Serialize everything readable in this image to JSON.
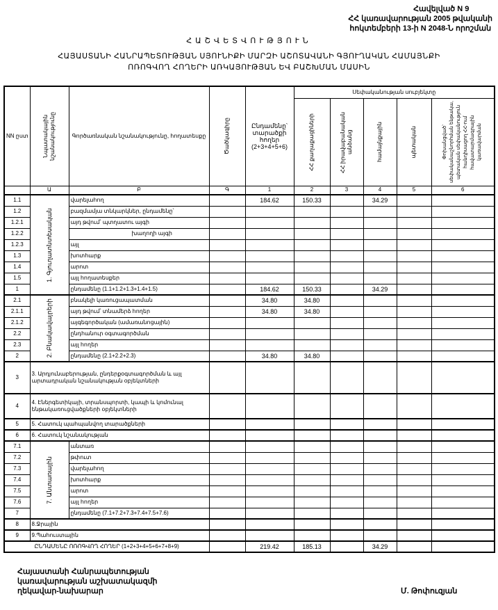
{
  "header": {
    "lines": [
      "Հավելված N 9",
      "ՀՀ կառավարության 2005 թվականի",
      "հոկտեմբերի 13-ի N 2048-Ն որոշման"
    ]
  },
  "title": {
    "main": "ՀԱՇՎԵՏՎՈՒԹՅՈՒՆ",
    "line1": "ՀԱՅԱՍՏԱՆԻ ՀԱՆՐԱՊԵՏՈՒԹՅԱՆ ՍՅՈՒՆԻՔԻ ՄԱՐԶԻ ԱՇՈՏԱՎԱՆԻ ԳՅՈՒՂԱԿԱՆ ՀԱՄԱՅՆՔԻ",
    "line2": "ՈՌՈԳՎՈՂ ՀՈՂԵՐԻ ԱՌԿԱՅՈՒԹՅԱՆ ԵՎ ԲԱՇԽՄԱՆ ՄԱՍԻՆ"
  },
  "table": {
    "headers": {
      "nn": "NN ըստ",
      "purpose": "Նպատակային նշանակությունը",
      "function": "Գործառնական նշանակությունը, հողատեսքը",
      "code": "Ծածկագիրը",
      "total": "Ընդամենը՝ տարածքի հողեր (2+3+4+5+6)",
      "ownership": "Սեփականության սուբյեկտը",
      "c2": "ՀՀ քաղաքացիների",
      "c3": "ՀՀ իրավաբանական անձանց",
      "c4": "համայնքային",
      "c5": "պետական",
      "c6": "Փոխանցված՝ սեփականաշնորհման ենթակա, պետական սեփականություն հանդիսացող ՀՀ-ում հավատարմագրային կառավարման"
    },
    "letters": [
      "",
      "Ա",
      "Բ",
      "Գ",
      "1",
      "2",
      "3",
      "4",
      "5",
      "6"
    ],
    "groups": {
      "g1": "1. Գյուղատնտեսական",
      "g2": "2. Բնակավայրերի",
      "g7": "7. Անտառային"
    },
    "rows": [
      {
        "nn": "1.1",
        "label": "վարելահող",
        "vals": [
          "184.62",
          "150.33",
          "",
          "34.29",
          "",
          ""
        ]
      },
      {
        "nn": "1.2",
        "label": "բազմամյա տնկարկներ, ընդամենը՝",
        "vals": [
          "",
          "",
          "",
          "",
          "",
          ""
        ]
      },
      {
        "nn": "1.2.1",
        "label": "այդ թվում՝        պտղատու այգի",
        "vals": [
          "",
          "",
          "",
          "",
          "",
          ""
        ]
      },
      {
        "nn": "1.2.2",
        "label": "                        խաղողի այգի",
        "vals": [
          "",
          "",
          "",
          "",
          "",
          ""
        ]
      },
      {
        "nn": "1.2.3",
        "label": "այլ",
        "vals": [
          "",
          "",
          "",
          "",
          "",
          ""
        ]
      },
      {
        "nn": "1.3",
        "label": "խոտհարք",
        "vals": [
          "",
          "",
          "",
          "",
          "",
          ""
        ]
      },
      {
        "nn": "1.4",
        "label": "արոտ",
        "vals": [
          "",
          "",
          "",
          "",
          "",
          ""
        ]
      },
      {
        "nn": "1.5",
        "label": "այլ հողատեսքեր",
        "vals": [
          "",
          "",
          "",
          "",
          "",
          ""
        ]
      },
      {
        "nn": "1",
        "label": "ընդամենը (1.1+1.2+1.3+1.4+1.5)",
        "vals": [
          "184.62",
          "150.33",
          "",
          "34.29",
          "",
          ""
        ]
      },
      {
        "nn": "2.1",
        "label": "բնակելի կառուցապատման",
        "vals": [
          "34.80",
          "34.80",
          "",
          "",
          "",
          ""
        ]
      },
      {
        "nn": "2.1.1",
        "label": "այդ թվում՝ տնամերձ հողեր",
        "vals": [
          "34.80",
          "34.80",
          "",
          "",
          "",
          ""
        ]
      },
      {
        "nn": "2.1.2",
        "label": "այգեգործական (ամառանոցային)",
        "vals": [
          "",
          "",
          "",
          "",
          "",
          ""
        ]
      },
      {
        "nn": "2.2",
        "label": "ընդհանուր օգտագործման",
        "vals": [
          "",
          "",
          "",
          "",
          "",
          ""
        ]
      },
      {
        "nn": "2.3",
        "label": "այլ հողեր",
        "vals": [
          "",
          "",
          "",
          "",
          "",
          ""
        ]
      },
      {
        "nn": "2",
        "label": "ընդամենը (2.1+2.2+2.3)",
        "vals": [
          "34.80",
          "34.80",
          "",
          "",
          "",
          ""
        ]
      },
      {
        "nn": "3",
        "label": "3. Արդյունաբերության, ընդերքօգտագործման և այլ արտադրական նշանակության օբյեկտների",
        "vals": [
          "",
          "",
          "",
          "",
          "",
          ""
        ]
      },
      {
        "nn": "4",
        "label": "4. Էներգետիկայի, տրանսպորտի, կապի և կոմունալ ենթակառուցվածքների օբյեկտների",
        "vals": [
          "",
          "",
          "",
          "",
          "",
          ""
        ]
      },
      {
        "nn": "5",
        "label": "5. Հատուկ պահպանվող տարածքների",
        "vals": [
          "",
          "",
          "",
          "",
          "",
          ""
        ]
      },
      {
        "nn": "6",
        "label": "6. Հատուկ նշանակության",
        "vals": [
          "",
          "",
          "",
          "",
          "",
          ""
        ]
      },
      {
        "nn": "7.1",
        "label": "անտառ",
        "vals": [
          "",
          "",
          "",
          "",
          "",
          ""
        ]
      },
      {
        "nn": "7.2",
        "label": "թփուտ",
        "vals": [
          "",
          "",
          "",
          "",
          "",
          ""
        ]
      },
      {
        "nn": "7.3",
        "label": "վարելահող",
        "vals": [
          "",
          "",
          "",
          "",
          "",
          ""
        ]
      },
      {
        "nn": "7.4",
        "label": "խոտհարք",
        "vals": [
          "",
          "",
          "",
          "",
          "",
          ""
        ]
      },
      {
        "nn": "7.5",
        "label": "արոտ",
        "vals": [
          "",
          "",
          "",
          "",
          "",
          ""
        ]
      },
      {
        "nn": "7.6",
        "label": "այլ հողեր",
        "vals": [
          "",
          "",
          "",
          "",
          "",
          ""
        ]
      },
      {
        "nn": "7",
        "label": "ընդամենը (7.1+7.2+7.3+7.4+7.5+7.6)",
        "vals": [
          "",
          "",
          "",
          "",
          "",
          ""
        ]
      },
      {
        "nn": "8",
        "label": "8.Ջրային",
        "vals": [
          "",
          "",
          "",
          "",
          "",
          ""
        ]
      },
      {
        "nn": "9",
        "label": "9.Պահուստային",
        "vals": [
          "",
          "",
          "",
          "",
          "",
          ""
        ]
      }
    ],
    "total_row": {
      "label": "ԸՆԴԱՄԵՆԸ ՈՌՈԳՎՈՂ ՀՈՂԵՐ (1+2+3+4+5+6+7+8+9)",
      "vals": [
        "219.42",
        "185.13",
        "",
        "34.29",
        "",
        ""
      ]
    }
  },
  "footer": {
    "lines": [
      "Հայաստանի Հանրապետության",
      "կառավարության աշխատակազմի",
      "ղեկավար-նախարար"
    ],
    "signatory": "Մ. Թոփուզյան"
  }
}
